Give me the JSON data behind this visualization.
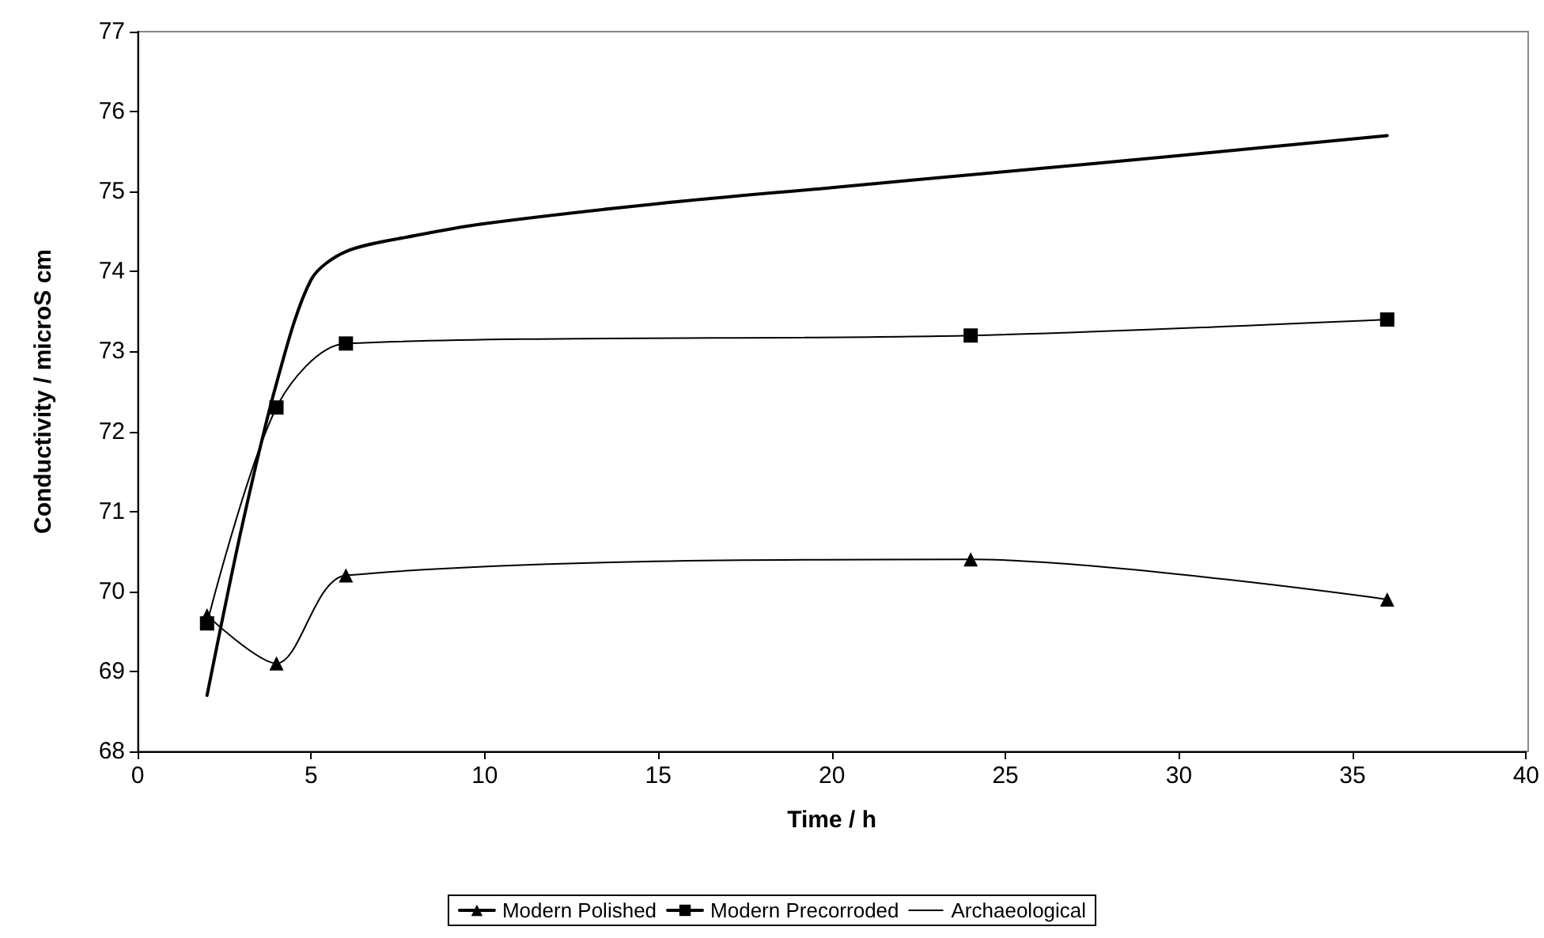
{
  "chart_data": {
    "type": "line",
    "xlabel": "Time / h",
    "ylabel": "Conductivity / microS cm",
    "xlim": [
      0,
      40
    ],
    "xticks": [
      0,
      5,
      10,
      15,
      20,
      25,
      30,
      35,
      40
    ],
    "ylim": [
      68,
      77
    ],
    "yticks": [
      68,
      69,
      70,
      71,
      72,
      73,
      74,
      75,
      76,
      77
    ],
    "grid": false,
    "legend": "bottom",
    "line_style": "solid",
    "series": [
      {
        "name": "Modern Polished",
        "color": "#000000",
        "marker": "triangle",
        "x": [
          2,
          4,
          6,
          24,
          36
        ],
        "values": [
          69.7,
          69.1,
          70.2,
          70.4,
          69.9
        ]
      },
      {
        "name": "Modern Precorroded",
        "color": "#000000",
        "marker": "square",
        "x": [
          2,
          4,
          6,
          24,
          36
        ],
        "values": [
          69.6,
          72.3,
          73.1,
          73.2,
          73.4
        ]
      },
      {
        "name": "Archaeological",
        "color": "#000000",
        "marker": "none",
        "x": [
          2,
          3,
          4,
          5,
          6,
          8,
          10,
          15,
          20,
          25,
          30,
          36
        ],
        "values": [
          68.7,
          70.8,
          72.6,
          73.9,
          74.25,
          74.45,
          74.6,
          74.85,
          75.05,
          75.25,
          75.45,
          75.7
        ]
      }
    ]
  }
}
